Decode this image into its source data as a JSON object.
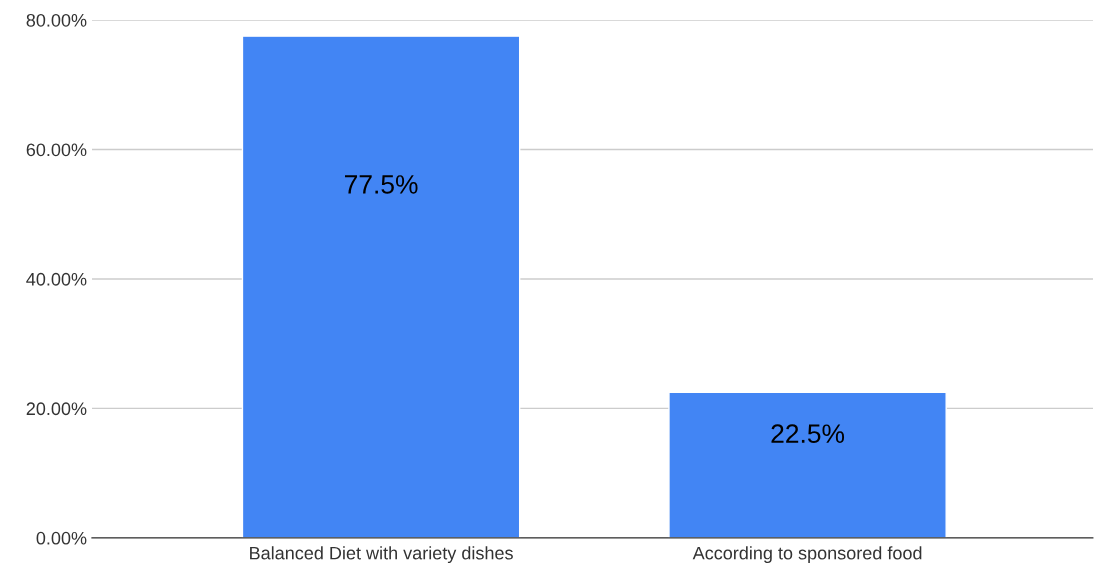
{
  "chart_data": {
    "type": "bar",
    "categories": [
      "Balanced Diet with variety dishes",
      "According to sponsored food"
    ],
    "values": [
      77.5,
      22.5
    ],
    "value_labels": [
      "77.5%",
      "22.5%"
    ],
    "color": "#4285f4",
    "ylim": [
      0,
      80
    ],
    "yticks": [
      {
        "value": 0,
        "label": "0.00%"
      },
      {
        "value": 20,
        "label": "20.00%"
      },
      {
        "value": 40,
        "label": "40.00%"
      },
      {
        "value": 60,
        "label": "60.00%"
      },
      {
        "value": 80,
        "label": "80.00%"
      }
    ],
    "grid": "y"
  }
}
